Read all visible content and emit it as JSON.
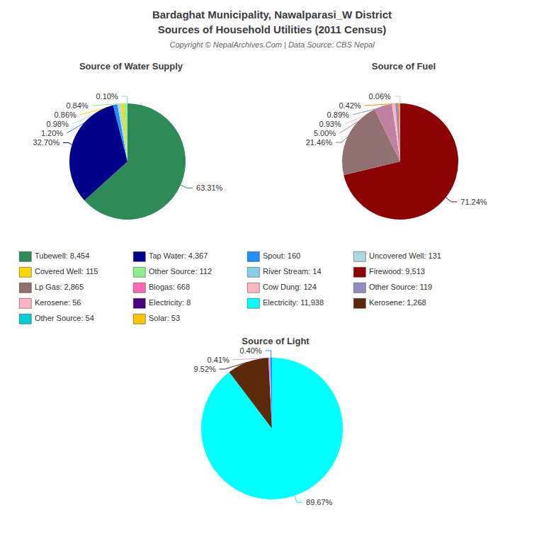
{
  "title": "Bardaghat Municipality, Nawalparasi_W District",
  "subtitle": "Sources of Household Utilities (2011 Census)",
  "annotations": [
    "Copyright © NepalArchives.Com | Data Source: CBS Nepal"
  ],
  "legend_items": [
    [
      {
        "name": "Tubewell: 8,454",
        "color": "#2E8B57"
      },
      {
        "name": "Covered Well: 115",
        "color": "#FFD700"
      },
      {
        "name": "Lp Gas: 2,865",
        "color": "#907070"
      },
      {
        "name": "Kerosene: 56",
        "color": "#FFB6C1"
      },
      {
        "name": "Other Source: 54",
        "color": "#00CED1"
      }
    ],
    [
      {
        "name": "Tap Water: 4,367",
        "color": "#00008B"
      },
      {
        "name": "Other Source: 112",
        "color": "#90EE90"
      },
      {
        "name": "Biogas: 668",
        "color": "#FF69B4"
      },
      {
        "name": "Electricity: 8",
        "color": "#4B0082"
      },
      {
        "name": "Solar: 53",
        "color": "#FFC200"
      }
    ],
    [
      {
        "name": "Spout: 160",
        "color": "#1E90FF"
      },
      {
        "name": "River Stream: 14",
        "color": "#87CEEB"
      },
      {
        "name": "Cow Dung: 124",
        "color": "#FFB6C1"
      },
      {
        "name": "Electricity: 11,938",
        "color": "#00FFFF"
      }
    ],
    [
      {
        "name": "Uncovered Well: 131",
        "color": "#ADD8E6"
      },
      {
        "name": "Firewood: 9,513",
        "color": "#8B0000"
      },
      {
        "name": "Other Source: 119",
        "color": "#9090C0"
      },
      {
        "name": "Kerosene: 1,268",
        "color": "#5C2A0A"
      }
    ]
  ],
  "chart_data": [
    {
      "type": "pie",
      "title": "Source of Water Supply",
      "values": [
        63.31,
        32.7,
        1.2,
        0.98,
        0.86,
        0.84,
        0.1
      ],
      "value_labels": [
        "63.31%",
        "32.70%",
        "1.20%",
        "0.98%",
        "0.86%",
        "0.84%",
        "0.10%"
      ],
      "colors": [
        "#2E8B57",
        "#00008B",
        "#1E90FF",
        "#ADD8E6",
        "#FFD700",
        "#90EE90",
        "#87CEEB"
      ],
      "data_labels": true
    },
    {
      "type": "pie",
      "title": "Source of Fuel",
      "values": [
        71.24,
        21.46,
        5.0,
        0.93,
        0.89,
        0.42,
        0.06
      ],
      "value_labels": [
        "71.24%",
        "21.46%",
        "5.00%",
        "0.93%",
        "0.89%",
        "0.42%",
        "0.06%"
      ],
      "colors": [
        "#8B0000",
        "#907070",
        "#C080A0",
        "#FFB6C1",
        "#9090C0",
        "#FF8C00",
        "#ADD8E6"
      ],
      "data_labels": true
    },
    {
      "type": "pie",
      "title": "Source of Light",
      "values": [
        89.67,
        9.52,
        0.41,
        0.4
      ],
      "value_labels": [
        "89.67%",
        "9.52%",
        "0.41%",
        "0.40%"
      ],
      "colors": [
        "#00FFFF",
        "#5C2A0A",
        "#DDA0DD",
        "#1E90FF"
      ],
      "data_labels": true
    }
  ]
}
